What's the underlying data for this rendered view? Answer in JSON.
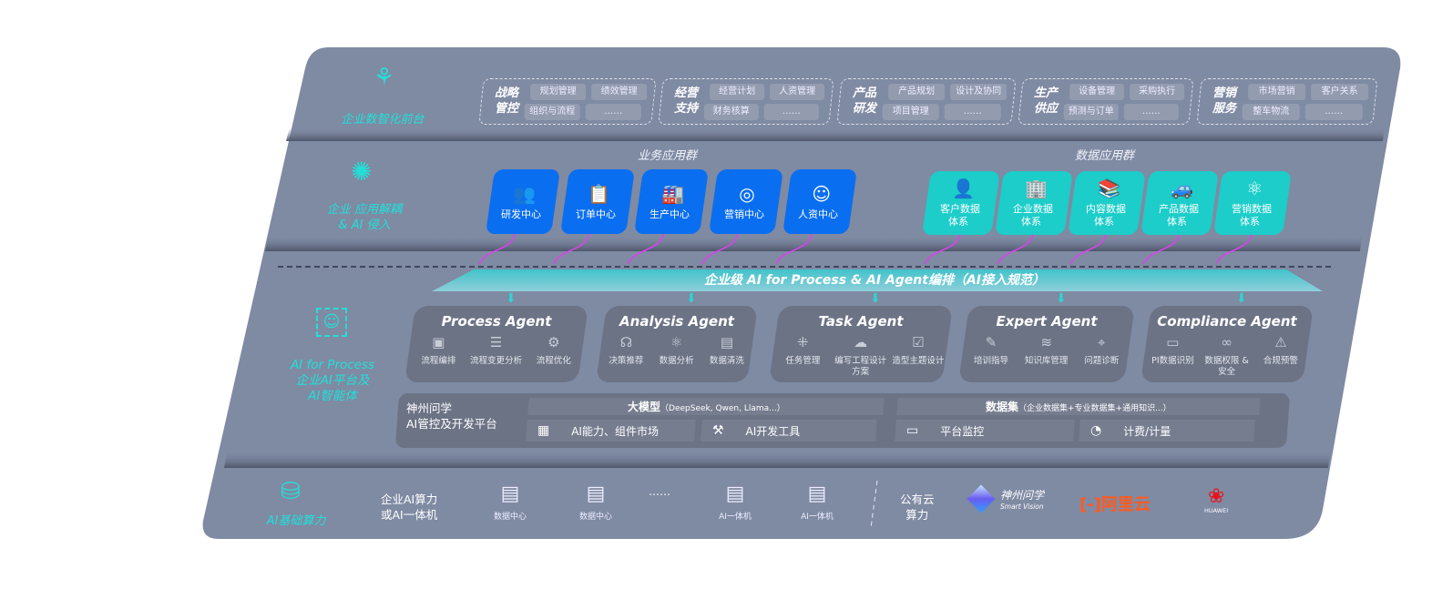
{
  "layers": {
    "front": {
      "label": "企业数智化前台",
      "icon": "brain-icon"
    },
    "apps": {
      "label_line1": "企业 应用解耦",
      "label_line2": "& AI 侵入",
      "icon": "molecule-icon"
    },
    "ai": {
      "label_line1": "AI for Process",
      "label_line2": "企业AI平台及",
      "label_line3": "AI智能体",
      "icon": "face-scan-icon"
    },
    "infra": {
      "label": "AI基础算力",
      "icon": "database-icon"
    }
  },
  "front_groups": [
    {
      "title1": "战略",
      "title2": "管控",
      "chips": [
        "规划管理",
        "绩效管理",
        "组织与流程",
        "……"
      ]
    },
    {
      "title1": "经营",
      "title2": "支持",
      "chips": [
        "经营计划",
        "人资管理",
        "财务核算",
        "……"
      ]
    },
    {
      "title1": "产品",
      "title2": "研发",
      "chips": [
        "产品规划",
        "设计及协同",
        "项目管理",
        "……"
      ]
    },
    {
      "title1": "生产",
      "title2": "供应",
      "chips": [
        "设备管理",
        "采购执行",
        "预测与订单",
        "……"
      ]
    },
    {
      "title1": "营销",
      "title2": "服务",
      "chips": [
        "市场营销",
        "客户关系",
        "整车物流",
        "……"
      ]
    }
  ],
  "business_apps": {
    "label": "业务应用群",
    "items": [
      {
        "label": "研发中心",
        "icon": "users-icon"
      },
      {
        "label": "订单中心",
        "icon": "clipboard-icon"
      },
      {
        "label": "生产中心",
        "icon": "factory-icon"
      },
      {
        "label": "营销中心",
        "icon": "target-icon"
      },
      {
        "label": "人资中心",
        "icon": "person-icon"
      }
    ]
  },
  "data_apps": {
    "label": "数据应用群",
    "items": [
      {
        "label1": "客户数据",
        "label2": "体系",
        "icon": "user-icon"
      },
      {
        "label1": "企业数据",
        "label2": "体系",
        "icon": "building-icon"
      },
      {
        "label1": "内容数据",
        "label2": "体系",
        "icon": "books-icon"
      },
      {
        "label1": "产品数据",
        "label2": "体系",
        "icon": "car-icon"
      },
      {
        "label1": "营销数据",
        "label2": "体系",
        "icon": "atom-icon"
      }
    ]
  },
  "banner": "企业级 AI for Process & AI Agent编排（AI接入规范）",
  "agents": [
    {
      "title": "Process Agent",
      "features": [
        {
          "label": "流程编排",
          "icon": "workflow-icon"
        },
        {
          "label": "流程变更分析",
          "icon": "list-icon"
        },
        {
          "label": "流程优化",
          "icon": "optimize-icon"
        }
      ]
    },
    {
      "title": "Analysis Agent",
      "features": [
        {
          "label": "决策推荐",
          "icon": "head-icon"
        },
        {
          "label": "数据分析",
          "icon": "atom-icon"
        },
        {
          "label": "数据清洗",
          "icon": "document-icon"
        }
      ]
    },
    {
      "title": "Task Agent",
      "features": [
        {
          "label": "任务管理",
          "icon": "network-icon"
        },
        {
          "label": "编写工程设计方案",
          "icon": "cloud-icon"
        },
        {
          "label": "造型主题设计",
          "icon": "checklist-icon"
        }
      ]
    },
    {
      "title": "Expert Agent",
      "features": [
        {
          "label": "培训指导",
          "icon": "training-icon"
        },
        {
          "label": "知识库管理",
          "icon": "layers-icon"
        },
        {
          "label": "问题诊断",
          "icon": "diagnosis-icon"
        }
      ]
    },
    {
      "title": "Compliance Agent",
      "features": [
        {
          "label": "PI数据识别",
          "icon": "id-card-icon"
        },
        {
          "label": "数据权限 & 安全",
          "icon": "link-icon"
        },
        {
          "label": "合规预警",
          "icon": "alert-icon"
        }
      ]
    }
  ],
  "platform": {
    "title1": "神州问学",
    "title2": "AI管控及开发平台",
    "model": {
      "label": "大模型",
      "note": "（DeepSeek, Qwen, Llama...）"
    },
    "dataset": {
      "label": "数据集",
      "note": "（企业数据集+专业数据集+通用知识...）"
    },
    "tools": [
      {
        "label": "AI能力、组件市场",
        "icon": "market-icon"
      },
      {
        "label": "AI开发工具",
        "icon": "dev-tool-icon"
      },
      {
        "label": "平台监控",
        "icon": "monitor-icon"
      },
      {
        "label": "计费/计量",
        "icon": "gauge-icon"
      }
    ]
  },
  "infra": {
    "enterprise_label1": "企业AI算力",
    "enterprise_label2": "或AI一体机",
    "servers": [
      {
        "label": "数据中心",
        "icon": "server-icon"
      },
      {
        "label": "数据中心",
        "icon": "server-icon"
      },
      {
        "label": "AI一体机",
        "icon": "server-icon"
      },
      {
        "label": "AI一体机",
        "icon": "server-icon"
      }
    ],
    "ellipsis": "……",
    "public_label1": "公有云",
    "public_label2": "算力",
    "logos": [
      {
        "name": "神州问学",
        "sub": "Smart Vision",
        "color": "#ffffff"
      },
      {
        "name": "阿里云",
        "color": "#ff5a1f"
      },
      {
        "name": "HUAWEI",
        "color": "#e8141c"
      }
    ]
  },
  "colors": {
    "panel": "#7f8aa3",
    "card": "#6b7385",
    "blue": "#0a6ef0",
    "teal": "#1ccdc9",
    "accent": "#22e0d8",
    "arrow": "#e040f0"
  }
}
